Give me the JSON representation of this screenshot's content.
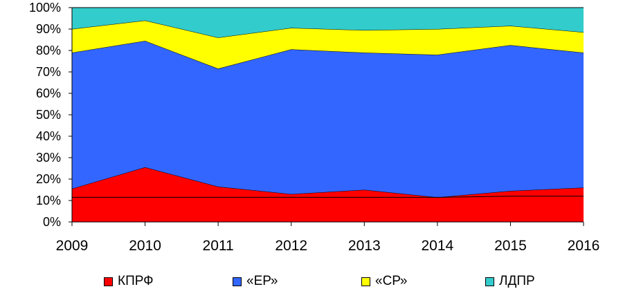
{
  "chart_data": {
    "type": "area",
    "stacked": true,
    "normalized": true,
    "x": [
      "2009",
      "2010",
      "2011",
      "2012",
      "2013",
      "2014",
      "2015",
      "2016"
    ],
    "ylim": [
      0,
      100
    ],
    "yticks": [
      "0%",
      "10%",
      "20%",
      "30%",
      "40%",
      "50%",
      "60%",
      "70%",
      "80%",
      "90%",
      "100%"
    ],
    "grid": false,
    "legend": "bottom",
    "series": [
      {
        "name": "КПРФ",
        "color": "#ff0000",
        "values": [
          15.5,
          25.5,
          16.5,
          13.0,
          15.0,
          11.5,
          14.5,
          16.0
        ]
      },
      {
        "name": "«ЕР»",
        "color": "#3366ff",
        "values": [
          63.5,
          59.0,
          55.0,
          67.5,
          64.0,
          66.5,
          68.0,
          63.0
        ]
      },
      {
        "name": "«СР»",
        "color": "#ffff00",
        "values": [
          11.0,
          9.5,
          14.5,
          10.0,
          10.5,
          12.0,
          9.0,
          9.5
        ]
      },
      {
        "name": "ЛДПР",
        "color": "#33cccc",
        "values": [
          10.0,
          6.0,
          14.0,
          9.5,
          10.5,
          10.0,
          8.5,
          11.5
        ]
      }
    ],
    "reference_line": {
      "values": [
        11.5,
        11.5,
        11.5,
        11.5,
        11.5,
        11.5,
        12.0,
        12.0
      ],
      "color": "#000000"
    }
  }
}
